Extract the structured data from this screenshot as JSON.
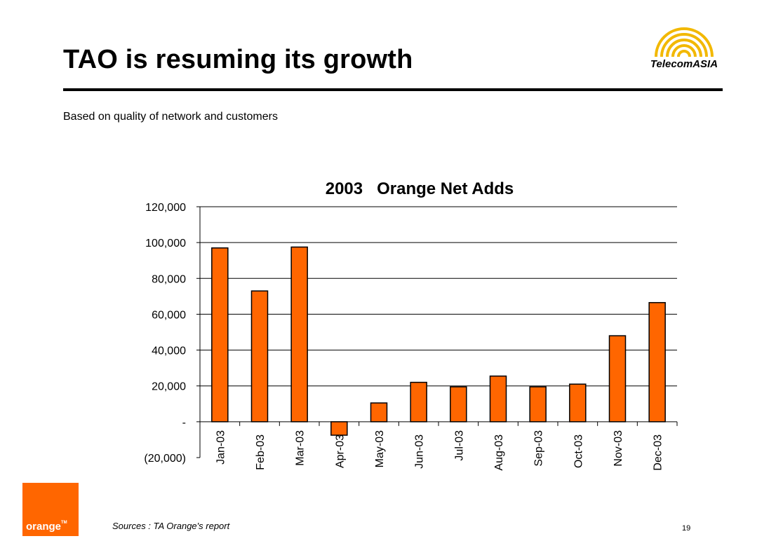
{
  "slide": {
    "title": "TAO is resuming its growth",
    "subtitle": "Based on quality of network and customers",
    "sources": "Sources : TA Orange's report",
    "page_number": "19",
    "orange_logo_text": "orange",
    "orange_logo_tm": "TM",
    "telecom_logo_text": "TelecomASIA",
    "colors": {
      "bar_fill": "#FF6600",
      "bar_stroke": "#000000",
      "orange_brand": "#FF6600",
      "logo_gold": "#F2B800"
    }
  },
  "chart_data": {
    "type": "bar",
    "title": "2003   Orange Net Adds",
    "xlabel": "",
    "ylabel": "",
    "categories": [
      "Jan-03",
      "Feb-03",
      "Mar-03",
      "Apr-03",
      "May-03",
      "Jun-03",
      "Jul-03",
      "Aug-03",
      "Sep-03",
      "Oct-03",
      "Nov-03",
      "Dec-03"
    ],
    "values": [
      97000,
      73000,
      97500,
      -7500,
      10500,
      22000,
      19500,
      25500,
      19500,
      21000,
      48000,
      66500
    ],
    "ylim": [
      -20000,
      120000
    ],
    "yticks": [
      120000,
      100000,
      80000,
      60000,
      40000,
      20000,
      0,
      -20000
    ],
    "ytick_labels": [
      "120,000",
      "100,000",
      "80,000",
      "60,000",
      "40,000",
      "20,000",
      "-",
      "(20,000)"
    ],
    "grid": true,
    "legend": "none",
    "tick_label_rotation": "vertical"
  }
}
